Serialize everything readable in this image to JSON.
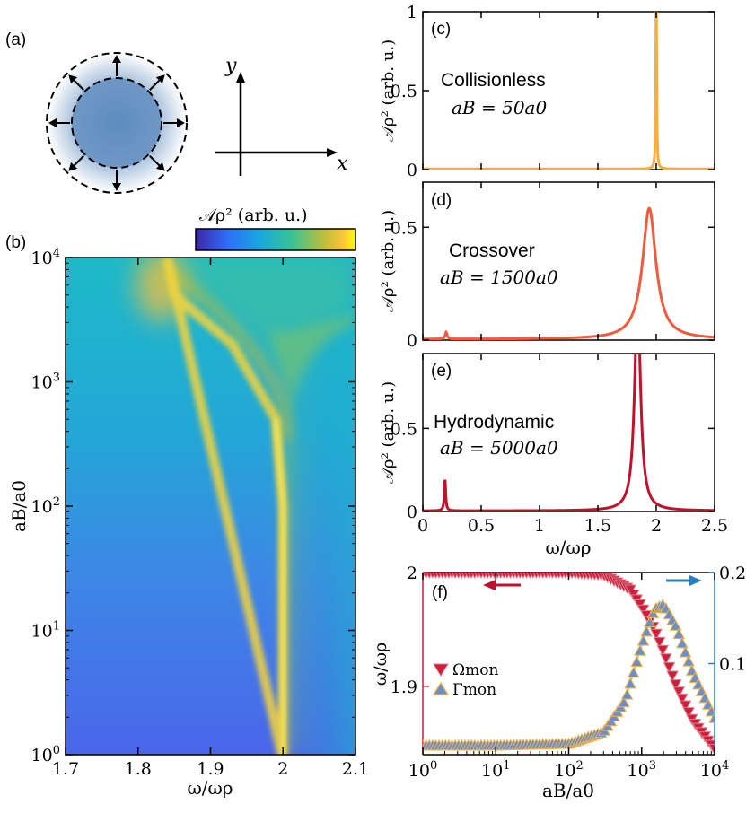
{
  "panel_labels": {
    "a": "(a)",
    "b": "(b)",
    "c": "(c)",
    "d": "(d)",
    "e": "(e)",
    "f": "(f)"
  },
  "axes_sketch": {
    "y_label": "y",
    "x_label": "x"
  },
  "chart_data": [
    {
      "id": "b",
      "type": "heatmap",
      "colorbar_label": "𝒜ρ² (arb. u.)",
      "xlabel": "ω/ωρ",
      "ylabel": "aB/a0",
      "xlim": [
        1.7,
        2.1
      ],
      "xticks": [
        "1.7",
        "1.8",
        "1.9",
        "2",
        "2.1"
      ],
      "xtick_values": [
        1.7,
        1.8,
        1.9,
        2.0,
        2.1
      ],
      "yscale": "log",
      "ylim": [
        1,
        10000
      ],
      "yticks": [
        "10^0",
        "10^1",
        "10^2",
        "10^3",
        "10^4"
      ],
      "ridge": [
        {
          "aB": 1,
          "omega": 2.0
        },
        {
          "aB": 100,
          "omega": 2.0
        },
        {
          "aB": 500,
          "omega": 1.99
        },
        {
          "aB": 2000,
          "omega": 1.93
        },
        {
          "aB": 5000,
          "omega": 1.85
        },
        {
          "aB": 10000,
          "omega": 1.84
        }
      ]
    },
    {
      "id": "c",
      "type": "line",
      "regime": "Collisionless",
      "annotation": "aB = 50a0",
      "color": "#f7ae3e",
      "xlim": [
        0,
        2.5
      ],
      "ylim": [
        0,
        1
      ],
      "yticks": [
        "0",
        "0.5",
        "1"
      ],
      "ylabel": "𝒜ρ² (arb. u.)",
      "peaks": [
        {
          "omega": 2.0,
          "gamma": 0.004,
          "height": 1.2
        }
      ]
    },
    {
      "id": "d",
      "type": "line",
      "regime": "Crossover",
      "annotation": "aB = 1500a0",
      "color": "#f15a3c",
      "xlim": [
        0,
        2.5
      ],
      "ylim": [
        0,
        0.7
      ],
      "yticks": [
        "0",
        "0.5"
      ],
      "ylabel": "𝒜ρ² (arb. u.)",
      "peaks": [
        {
          "omega": 1.94,
          "gamma": 0.07,
          "height": 0.58
        },
        {
          "omega": 0.2,
          "gamma": 0.01,
          "height": 0.03
        }
      ]
    },
    {
      "id": "e",
      "type": "line",
      "regime": "Hydrodynamic",
      "annotation": "aB = 5000a0",
      "color": "#c0112d",
      "xlim": [
        0,
        2.5
      ],
      "ylim": [
        0,
        0.95
      ],
      "yticks": [
        "0",
        "0.5"
      ],
      "xticks": [
        "0",
        "0.5",
        "1",
        "1.5",
        "2",
        "2.5"
      ],
      "xtick_values": [
        0,
        0.5,
        1.0,
        1.5,
        2.0,
        2.5
      ],
      "xlabel": "ω/ωρ",
      "ylabel": "𝒜ρ² (arb. u.)",
      "peaks": [
        {
          "omega": 1.84,
          "gamma": 0.03,
          "height": 1.3
        },
        {
          "omega": 0.19,
          "gamma": 0.007,
          "height": 0.19
        }
      ]
    },
    {
      "id": "f",
      "type": "scatter",
      "xlabel": "aB/a0",
      "ylabel_left": "ω/ωρ",
      "xscale": "log",
      "xlim": [
        1,
        10000
      ],
      "xticks": [
        "10^0",
        "10^1",
        "10^2",
        "10^3",
        "10^4"
      ],
      "ylim_left": [
        1.84,
        2.0
      ],
      "yticks_left": [
        "1.9",
        "2"
      ],
      "ylim_right": [
        0.0,
        0.2
      ],
      "yticks_right": [
        "0.1",
        "0.2"
      ],
      "series": [
        {
          "name": "Ωmon",
          "axis": "left",
          "marker": "triangle-down",
          "color": "#cc1f3b",
          "x": [
            1,
            10,
            100,
            300,
            700,
            1000,
            1500,
            2000,
            3000,
            5000,
            10000
          ],
          "y": [
            2.0,
            2.0,
            2.0,
            1.998,
            1.985,
            1.97,
            1.95,
            1.93,
            1.9,
            1.87,
            1.845
          ]
        },
        {
          "name": "Γmon",
          "axis": "right",
          "marker": "triangle-up",
          "color": "#6b8fc7",
          "x": [
            1,
            10,
            100,
            300,
            600,
            1000,
            1500,
            2000,
            3000,
            5000,
            10000
          ],
          "y": [
            0.01,
            0.01,
            0.012,
            0.025,
            0.06,
            0.12,
            0.16,
            0.165,
            0.14,
            0.09,
            0.04
          ]
        }
      ]
    }
  ]
}
